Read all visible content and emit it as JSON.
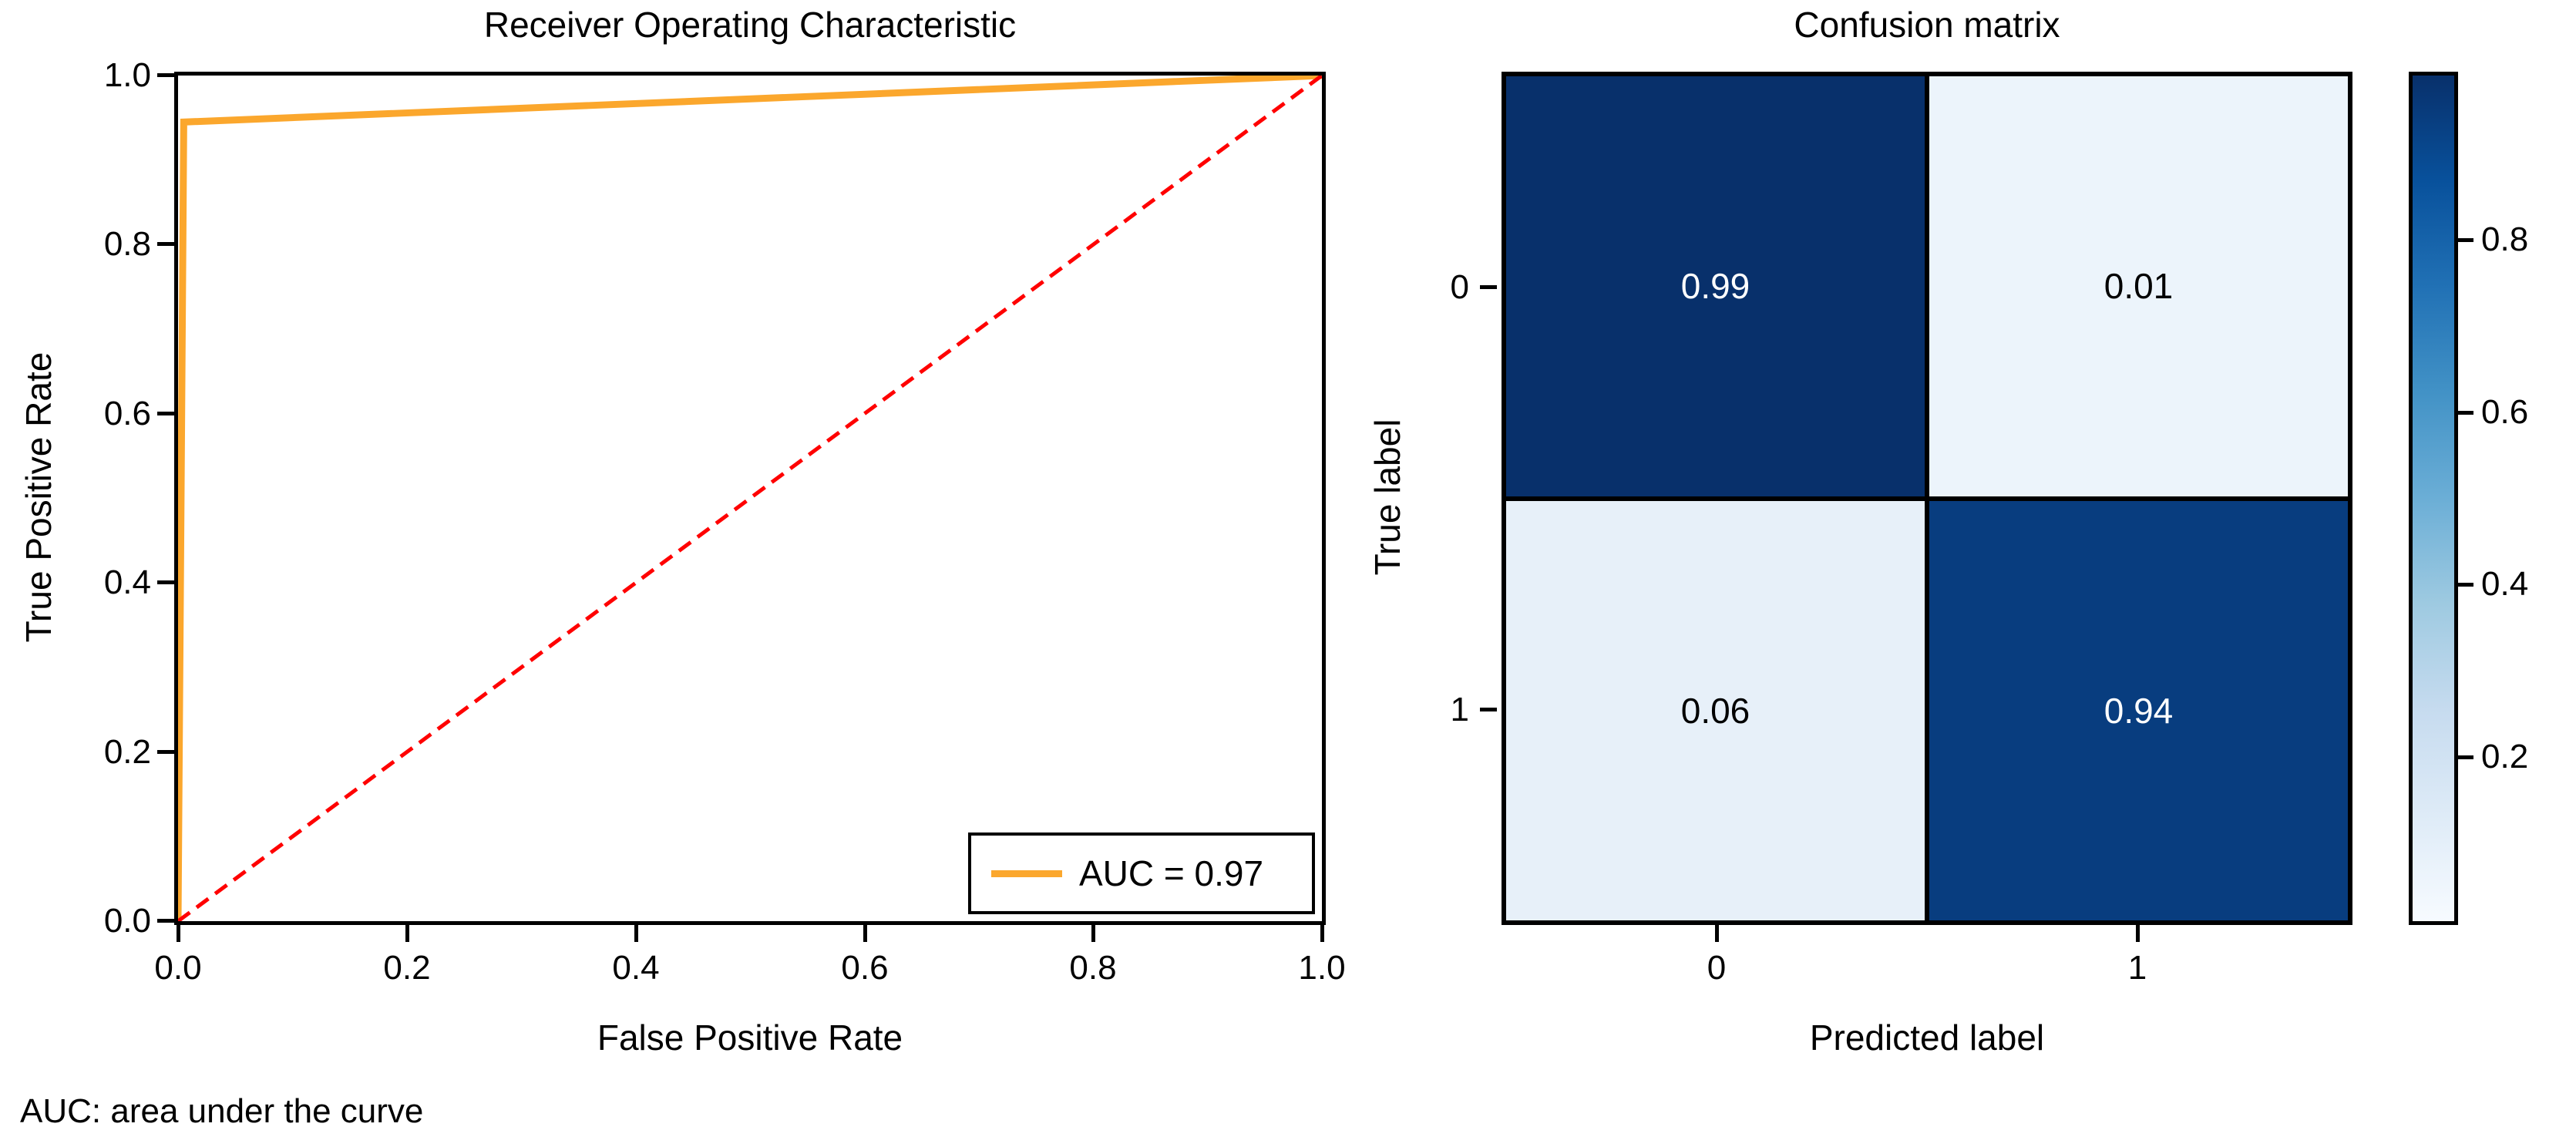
{
  "footnote": {
    "text": "AUC: area under the curve"
  },
  "chart_data": [
    {
      "type": "line",
      "title": "Receiver Operating Characteristic",
      "xlabel": "False Positive Rate",
      "ylabel": "True Positive Rate",
      "xlim": [
        0.0,
        1.0
      ],
      "ylim": [
        0.0,
        1.0
      ],
      "x_ticks": [
        "0.0",
        "0.2",
        "0.4",
        "0.6",
        "0.8",
        "1.0"
      ],
      "y_ticks": [
        "0.0",
        "0.2",
        "0.4",
        "0.6",
        "0.8",
        "1.0"
      ],
      "grid": false,
      "series": [
        {
          "name": "ROC curve",
          "color": "#FBA72D",
          "style": "solid",
          "x": [
            0.0,
            0.005,
            1.0
          ],
          "y": [
            0.0,
            0.945,
            1.0
          ]
        },
        {
          "name": "chance diagonal",
          "color": "#FF0000",
          "style": "dashed",
          "x": [
            0.0,
            1.0
          ],
          "y": [
            0.0,
            1.0
          ]
        }
      ],
      "legend": {
        "position": "lower right",
        "entries": [
          "AUC = 0.97"
        ]
      }
    },
    {
      "type": "heatmap",
      "title": "Confusion matrix",
      "xlabel": "Predicted label",
      "ylabel": "True label",
      "x_categories": [
        "0",
        "1"
      ],
      "y_categories": [
        "0",
        "1"
      ],
      "values": [
        [
          "0.99",
          "0.01"
        ],
        [
          "0.06",
          "0.94"
        ]
      ],
      "cell_colors": [
        [
          "#08306B",
          "#ECF4FB"
        ],
        [
          "#E7F0F9",
          "#083D7F"
        ]
      ],
      "colormap": "Blues",
      "colorbar_ticks": [
        "0.8",
        "0.6",
        "0.4",
        "0.2"
      ],
      "colorbar_range": [
        0.01,
        0.99
      ]
    }
  ]
}
